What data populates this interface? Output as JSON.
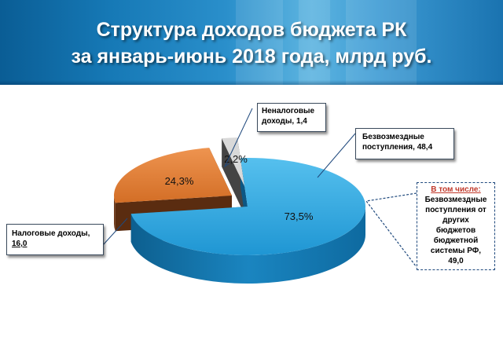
{
  "title_line1": "Структура доходов бюджета РК",
  "title_line2": "за январь-июнь 2018 года, млрд руб.",
  "colors": {
    "bezvozmezdnye": "#29a3dd",
    "nalogovye": "#e07b32",
    "nenalogovye": "#c8c8c8",
    "header": "#1679b6"
  },
  "chart_data": {
    "type": "pie",
    "slices": [
      {
        "key": "bezvozmezdnye",
        "label": "Безвозмездные поступления, 48,4",
        "value": 48.4,
        "percent_label": "73,5%",
        "percent": 73.5
      },
      {
        "key": "nalogovye",
        "label": "Налоговые доходы, 16,0",
        "value": 16.0,
        "percent_label": "24,3%",
        "percent": 24.3
      },
      {
        "key": "nenalogovye",
        "label": "Неналоговые доходы, 1,4",
        "value": 1.4,
        "percent_label": "2,2%",
        "percent": 2.2
      }
    ]
  },
  "callouts": {
    "nenalogovye_line1": "Неналоговые",
    "nenalogovye_line2": "доходы, 1,4",
    "bezvozmezdnye_line1": "Безвозмездные",
    "bezvozmezdnye_line2": "поступления, 48,4",
    "nalogovye_line1": "Налоговые доходы,",
    "nalogovye_line2": "16,0",
    "incl_heading": "В том числе:",
    "incl_line1": "Безвозмездные",
    "incl_line2": "поступления от",
    "incl_line3": "других",
    "incl_line4": "бюджетов",
    "incl_line5": "бюджетной",
    "incl_line6": "системы РФ,",
    "incl_line7": "49,0"
  }
}
